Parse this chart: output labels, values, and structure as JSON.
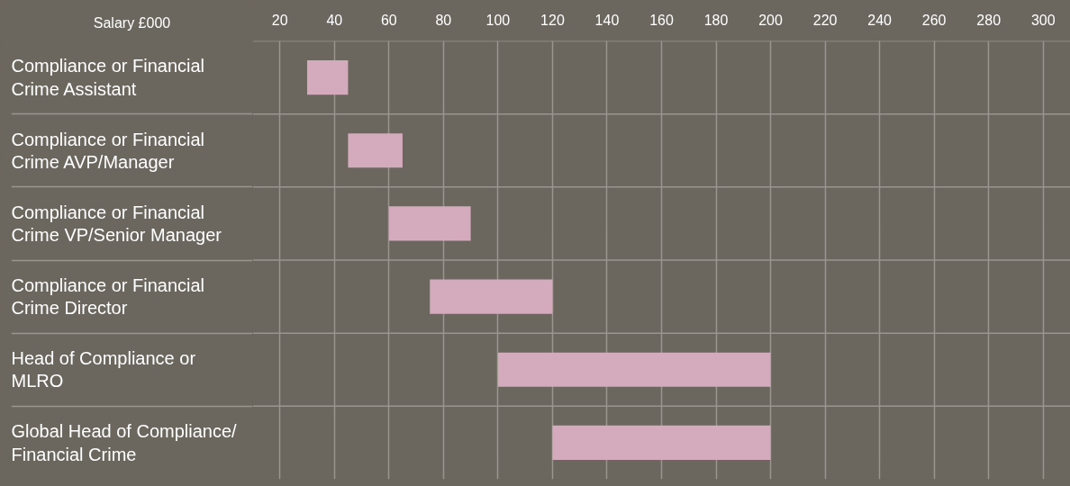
{
  "chart_data": {
    "type": "bar",
    "orientation": "horizontal",
    "xlabel": "Salary £000",
    "categories": [
      "Compliance or Financial Crime Assistant",
      "Compliance or Financial Crime AVP/Manager",
      "Compliance or Financial Crime VP/Senior Manager",
      "Compliance or Financial Crime Director",
      "Head of Compliance or MLRO",
      "Global Head of Compliance/Financial Crime"
    ],
    "base": [
      30,
      45,
      60,
      75,
      100,
      120
    ],
    "values": [
      15,
      20,
      30,
      45,
      100,
      80
    ],
    "color": "#d3abbd",
    "xlim": [
      10,
      310
    ],
    "xticks": [
      20,
      40,
      60,
      80,
      100,
      120,
      140,
      160,
      180,
      200,
      220,
      240,
      260,
      280,
      300
    ],
    "grid": true
  }
}
